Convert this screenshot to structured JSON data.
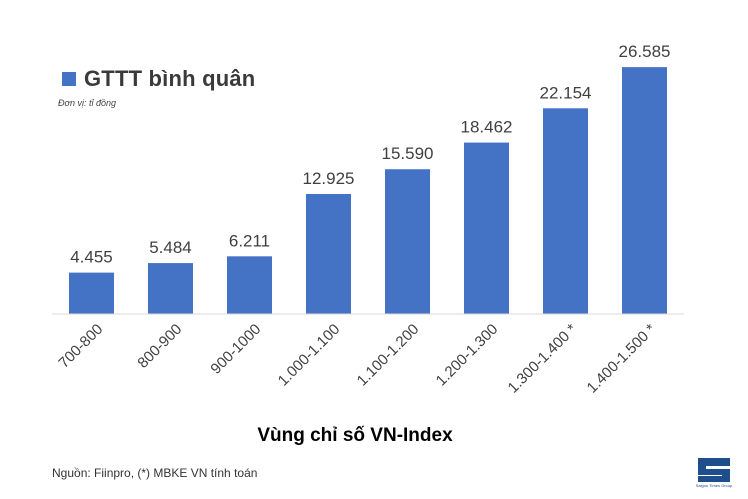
{
  "colors": {
    "bar": "#4472c4",
    "text": "#404040",
    "axis": "#d9d9d9",
    "logo": "#1f4e8c"
  },
  "legend": {
    "label": "GTTT bình quân"
  },
  "unit_note": "Đơn vị: tỉ đồng",
  "source_note": "Nguồn: Fiinpro, (*) MBKE VN tính toán",
  "logo": {
    "icon": "saigon-times-logo-icon",
    "caption": "Saigon Times Group"
  },
  "chart_data": {
    "type": "bar",
    "title": "",
    "xlabel": "Vùng chỉ số VN-Index",
    "ylabel": "",
    "ylim": [
      0,
      28000
    ],
    "categories": [
      "700-800",
      "800-900",
      "900-1000",
      "1.000-1.100",
      "1.100-1.200",
      "1.200-1.300",
      "1.300-1.400 *",
      "1.400-1.500 *"
    ],
    "series": [
      {
        "name": "GTTT bình quân",
        "values": [
          4455,
          5484,
          6211,
          12925,
          15590,
          18462,
          22154,
          26585
        ],
        "labels": [
          "4.455",
          "5.484",
          "6.211",
          "12.925",
          "15.590",
          "18.462",
          "22.154",
          "26.585"
        ]
      }
    ]
  }
}
